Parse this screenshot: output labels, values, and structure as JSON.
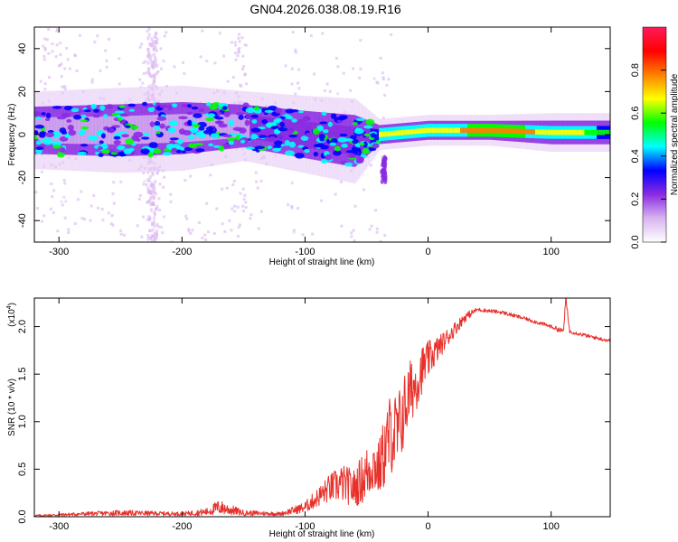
{
  "title": "GN04.2026.038.08.19.R16",
  "chart_data": [
    {
      "type": "heatmap",
      "panel": "spectrogram",
      "xlabel": "Height of straight line (km)",
      "ylabel": "Frequency (Hz)",
      "xlim": [
        -320,
        148
      ],
      "ylim": [
        -50,
        50
      ],
      "xticks": [
        -300,
        -200,
        -100,
        0,
        100
      ],
      "yticks": [
        -40,
        -20,
        0,
        20,
        40
      ],
      "colorbar": {
        "label": "Normalized spectral amplitude",
        "range": [
          0.0,
          1.0
        ],
        "ticks": [
          0.0,
          0.2,
          0.4,
          0.6,
          0.8
        ],
        "colormap": [
          "#ffffff",
          "#d8b4f0",
          "#8a2be2",
          "#0000ff",
          "#00ffff",
          "#00ff00",
          "#ffff00",
          "#ff8000",
          "#ff0000",
          "#ff1a5a"
        ]
      },
      "band": [
        {
          "x": -320,
          "center_hz": 2,
          "width_hz": 20,
          "amplitude": 0.35
        },
        {
          "x": -250,
          "center_hz": 2,
          "width_hz": 22,
          "amplitude": 0.4
        },
        {
          "x": -200,
          "center_hz": 3,
          "width_hz": 22,
          "amplitude": 0.38
        },
        {
          "x": -150,
          "center_hz": 4,
          "width_hz": 18,
          "amplitude": 0.4
        },
        {
          "x": -100,
          "center_hz": 0,
          "width_hz": 20,
          "amplitude": 0.45
        },
        {
          "x": -60,
          "center_hz": -3,
          "width_hz": 22,
          "amplitude": 0.45
        },
        {
          "x": -40,
          "center_hz": 0,
          "width_hz": 8,
          "amplitude": 0.7
        },
        {
          "x": 0,
          "center_hz": 2,
          "width_hz": 8,
          "amplitude": 0.7
        },
        {
          "x": 50,
          "center_hz": 2,
          "width_hz": 8,
          "amplitude": 0.85
        },
        {
          "x": 100,
          "center_hz": 1,
          "width_hz": 10,
          "amplitude": 0.75
        },
        {
          "x": 148,
          "center_hz": 1,
          "width_hz": 10,
          "amplitude": 0.6
        }
      ]
    },
    {
      "type": "line",
      "panel": "snr",
      "xlabel": "Height of straight line (km)",
      "ylabel": "SNR (10 * v/v)",
      "multiplier": "(x10",
      "multiplier_exp": "4",
      "xlim": [
        -320,
        148
      ],
      "ylim": [
        0,
        2.3
      ],
      "xticks": [
        -300,
        -200,
        -100,
        0,
        100
      ],
      "yticks": [
        0.0,
        0.5,
        1.0,
        1.5,
        2.0
      ],
      "color": "#e8302a",
      "series": [
        {
          "name": "SNR",
          "x": [
            -320,
            -280,
            -250,
            -200,
            -180,
            -170,
            -150,
            -120,
            -100,
            -90,
            -80,
            -70,
            -60,
            -50,
            -45,
            -40,
            -35,
            -30,
            -25,
            -20,
            -15,
            -10,
            -5,
            0,
            10,
            20,
            30,
            40,
            60,
            80,
            100,
            110,
            112,
            115,
            130,
            148
          ],
          "y": [
            0.01,
            0.03,
            0.04,
            0.03,
            0.05,
            0.1,
            0.04,
            0.03,
            0.1,
            0.2,
            0.3,
            0.35,
            0.3,
            0.45,
            0.55,
            0.5,
            0.7,
            0.9,
            0.85,
            1.1,
            1.3,
            1.4,
            1.55,
            1.65,
            1.8,
            1.95,
            2.1,
            2.18,
            2.15,
            2.08,
            2.0,
            1.95,
            2.3,
            1.95,
            1.9,
            1.85
          ],
          "amp": [
            0.01,
            0.02,
            0.03,
            0.02,
            0.04,
            0.08,
            0.03,
            0.02,
            0.06,
            0.1,
            0.15,
            0.2,
            0.2,
            0.3,
            0.3,
            0.3,
            0.4,
            0.45,
            0.45,
            0.4,
            0.35,
            0.3,
            0.25,
            0.2,
            0.12,
            0.08,
            0.05,
            0.02,
            0.02,
            0.02,
            0.02,
            0.03,
            0.04,
            0.02,
            0.02,
            0.02
          ]
        }
      ]
    }
  ]
}
